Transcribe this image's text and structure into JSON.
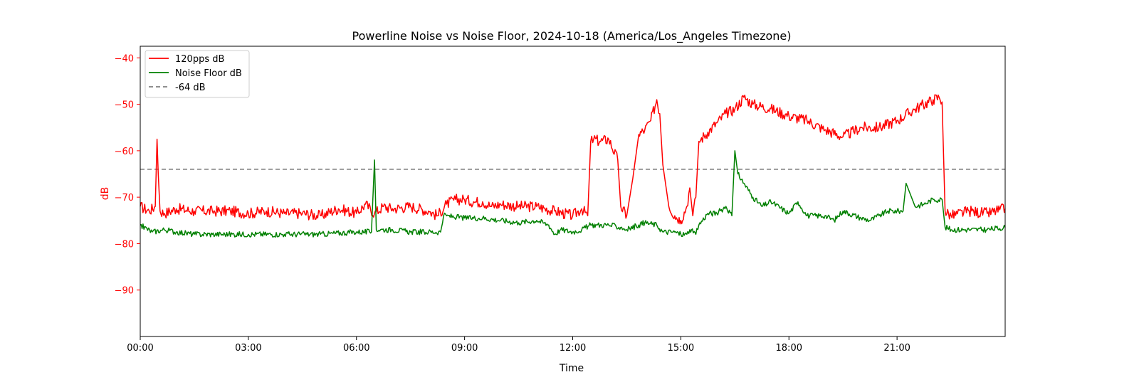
{
  "chart_data": {
    "type": "line",
    "title": "Powerline Noise vs Noise Floor, 2024-10-18 (America/Los_Angeles Timezone)",
    "xlabel": "Time",
    "ylabel": "dB",
    "xlim": [
      "00:00",
      "24:00"
    ],
    "ylim": [
      -100,
      -37.5
    ],
    "x_ticks": [
      "00:00",
      "03:00",
      "06:00",
      "09:00",
      "12:00",
      "15:00",
      "18:00",
      "21:00"
    ],
    "y_ticks": [
      -40,
      -50,
      -60,
      -70,
      -80,
      -90
    ],
    "grid": false,
    "legend": "upper-left",
    "colors": {
      "axis_label": "#ff0000",
      "ref_line": "#808080"
    },
    "reference_line": {
      "name": "-64 dB",
      "y": -64,
      "color": "#808080",
      "style": "dashed"
    },
    "series": [
      {
        "name": "120pps dB",
        "color": "#ff0000",
        "x": [
          "00:00",
          "00:15",
          "00:25",
          "00:28",
          "00:30",
          "00:33",
          "00:40",
          "01:00",
          "01:30",
          "02:00",
          "02:30",
          "03:00",
          "03:30",
          "04:00",
          "04:30",
          "05:00",
          "05:30",
          "06:00",
          "06:15",
          "06:30",
          "06:45",
          "07:00",
          "07:30",
          "08:00",
          "08:15",
          "08:30",
          "08:45",
          "09:00",
          "09:15",
          "09:30",
          "09:45",
          "10:00",
          "10:30",
          "11:00",
          "11:30",
          "12:00",
          "12:15",
          "12:25",
          "12:30",
          "12:35",
          "12:45",
          "13:00",
          "13:15",
          "13:20",
          "13:30",
          "13:40",
          "13:50",
          "14:00",
          "14:10",
          "14:20",
          "14:25",
          "14:30",
          "14:40",
          "14:50",
          "15:00",
          "15:10",
          "15:15",
          "15:20",
          "15:25",
          "15:30",
          "15:45",
          "16:00",
          "16:15",
          "16:30",
          "16:45",
          "17:00",
          "17:30",
          "18:00",
          "18:30",
          "19:00",
          "19:30",
          "20:00",
          "20:30",
          "21:00",
          "21:30",
          "22:00",
          "22:10",
          "22:15",
          "22:20",
          "22:30",
          "23:00",
          "23:30",
          "24:00"
        ],
        "values": [
          -72,
          -73,
          -72,
          -57.5,
          -65,
          -73,
          -73.5,
          -72.5,
          -73,
          -73,
          -73,
          -73.5,
          -73,
          -73.5,
          -73.5,
          -74,
          -72.5,
          -73.5,
          -71.5,
          -73.5,
          -72,
          -72.5,
          -72,
          -73,
          -74,
          -71.5,
          -70.5,
          -70.5,
          -71,
          -71,
          -72,
          -71.5,
          -72,
          -72,
          -73,
          -74,
          -72.5,
          -74,
          -58,
          -57.5,
          -58,
          -57.5,
          -62,
          -72,
          -74,
          -66,
          -56.5,
          -55.5,
          -53.5,
          -49,
          -52,
          -63,
          -72,
          -74,
          -75,
          -72,
          -68,
          -74,
          -70,
          -58,
          -56,
          -54,
          -52,
          -51,
          -48.5,
          -50,
          -51,
          -52.5,
          -53.5,
          -55.5,
          -57,
          -55,
          -55,
          -53.5,
          -51,
          -49,
          -48.5,
          -49.5,
          -73,
          -74,
          -73,
          -73.5,
          -72.5
        ]
      },
      {
        "name": "Noise Floor dB",
        "color": "#008000",
        "x": [
          "00:00",
          "00:20",
          "00:40",
          "01:00",
          "01:30",
          "02:00",
          "03:00",
          "04:00",
          "05:00",
          "06:00",
          "06:25",
          "06:30",
          "06:33",
          "06:40",
          "07:00",
          "07:30",
          "08:00",
          "08:20",
          "08:25",
          "08:30",
          "09:00",
          "09:30",
          "10:00",
          "10:30",
          "11:00",
          "11:20",
          "11:30",
          "11:40",
          "12:00",
          "12:15",
          "12:30",
          "12:40",
          "13:00",
          "13:20",
          "13:30",
          "13:50",
          "14:00",
          "14:20",
          "14:30",
          "14:50",
          "15:00",
          "15:10",
          "15:15",
          "15:25",
          "15:30",
          "15:45",
          "16:00",
          "16:15",
          "16:25",
          "16:30",
          "16:35",
          "16:45",
          "17:00",
          "17:15",
          "17:30",
          "18:00",
          "18:15",
          "18:30",
          "19:00",
          "19:15",
          "19:30",
          "20:00",
          "20:15",
          "20:30",
          "20:45",
          "21:00",
          "21:10",
          "21:15",
          "21:30",
          "21:45",
          "22:00",
          "22:15",
          "22:20",
          "22:30",
          "23:00",
          "23:30",
          "24:00"
        ],
        "values": [
          -76,
          -77.5,
          -77,
          -77.5,
          -78,
          -78,
          -78,
          -78,
          -78,
          -77.5,
          -77.5,
          -62,
          -77,
          -77,
          -77,
          -77.5,
          -77.5,
          -77.5,
          -74,
          -74,
          -74.5,
          -74.5,
          -75,
          -75.5,
          -75,
          -76,
          -78,
          -77,
          -77.5,
          -77,
          -76,
          -76,
          -76,
          -76.5,
          -77,
          -76,
          -75.5,
          -76,
          -77.5,
          -77.5,
          -78,
          -78,
          -77,
          -78,
          -76,
          -73.5,
          -73.5,
          -72,
          -74,
          -60,
          -65,
          -67,
          -70,
          -72,
          -71,
          -73.5,
          -71,
          -74,
          -74,
          -75,
          -73,
          -74.5,
          -75,
          -74,
          -73,
          -73,
          -73,
          -67,
          -72,
          -71.5,
          -70.5,
          -70.5,
          -76.5,
          -77,
          -77,
          -77,
          -76.5
        ]
      }
    ]
  }
}
